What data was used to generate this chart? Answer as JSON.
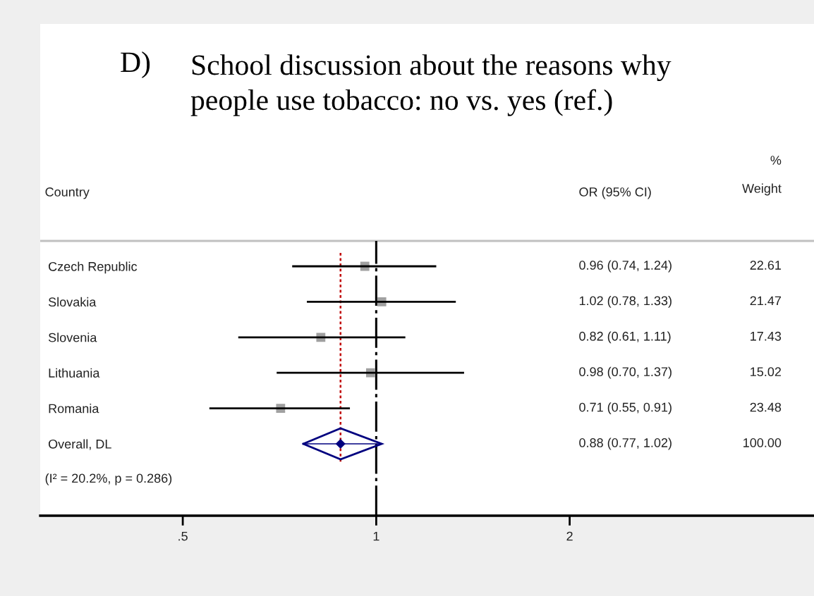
{
  "chart_data": {
    "type": "scatter",
    "title": "D) School discussion about the reasons why\npeople use tobacco: no vs. yes (ref.)",
    "ylabel": "Country",
    "y2label": "OR (95% CI)",
    "orientation": "horizontal",
    "categories": [
      "Czech Republic",
      "Slovakia",
      "Slovenia",
      "Lithuania",
      "Romania",
      "Overall, DL"
    ],
    "y2_categories": [
      "0.96 (0.74, 1.24)",
      "1.02 (0.78, 1.33)",
      "0.82 (0.61, 1.11)",
      "0.98 (0.70, 1.37)",
      "0.71 (0.55, 0.91)",
      "0.88 (0.77, 1.02)"
    ],
    "series": [
      {
        "color": "#a0a0a0",
        "marker": "square",
        "values": [
          0.96,
          1.02,
          0.82,
          0.98,
          0.71,
          null
        ],
        "errors": [
          [
            0.74,
            1.24
          ],
          [
            0.78,
            1.33
          ],
          [
            0.61,
            1.11
          ],
          [
            0.7,
            1.37
          ],
          [
            0.55,
            0.91
          ],
          null
        ]
      },
      {
        "color": "#00007f",
        "marker": "diamond",
        "values": [
          null,
          null,
          null,
          null,
          null,
          0.88
        ],
        "errors": [
          null,
          null,
          null,
          null,
          null,
          [
            0.77,
            1.02
          ]
        ]
      }
    ],
    "log": "x",
    "xlim": [
      0.3,
      4.8
    ],
    "xticks": [
      {
        "value": 0.5,
        "label": ".5"
      },
      1,
      2
    ],
    "ref_lines": [
      {
        "axis": "x",
        "value": 1,
        "color": "#000000",
        "line_style": "dashed"
      },
      {
        "axis": "x",
        "value": 0.88,
        "color": "#c00000",
        "line_style": "dotted"
      }
    ],
    "annotations": [
      "%\nWeight",
      "22.61",
      "21.47",
      "17.43",
      "15.02",
      "23.48",
      "100.00",
      "(I² = 20.2%, p = 0.286)"
    ],
    "grid": false
  }
}
